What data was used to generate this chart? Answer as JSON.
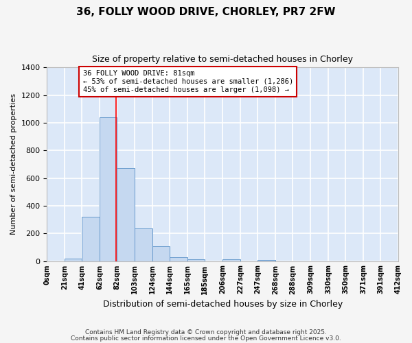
{
  "title1": "36, FOLLY WOOD DRIVE, CHORLEY, PR7 2FW",
  "title2": "Size of property relative to semi-detached houses in Chorley",
  "xlabel": "Distribution of semi-detached houses by size in Chorley",
  "ylabel": "Number of semi-detached properties",
  "bin_labels": [
    "0sqm",
    "21sqm",
    "41sqm",
    "62sqm",
    "82sqm",
    "103sqm",
    "124sqm",
    "144sqm",
    "165sqm",
    "185sqm",
    "206sqm",
    "227sqm",
    "247sqm",
    "268sqm",
    "288sqm",
    "309sqm",
    "330sqm",
    "350sqm",
    "371sqm",
    "391sqm",
    "412sqm"
  ],
  "bin_edges": [
    0,
    21,
    41,
    62,
    82,
    103,
    124,
    144,
    165,
    185,
    206,
    227,
    247,
    268,
    288,
    309,
    330,
    350,
    371,
    391,
    412
  ],
  "bar_heights": [
    0,
    20,
    320,
    1040,
    670,
    235,
    105,
    30,
    15,
    0,
    15,
    0,
    10,
    0,
    0,
    0,
    0,
    0,
    0,
    0
  ],
  "bar_color": "#c5d8f0",
  "bar_edgecolor": "#6699cc",
  "property_size": 81,
  "red_line_x": 81,
  "annotation_title": "36 FOLLY WOOD DRIVE: 81sqm",
  "annotation_line1": "← 53% of semi-detached houses are smaller (1,286)",
  "annotation_line2": "45% of semi-detached houses are larger (1,098) →",
  "annotation_box_color": "#ffffff",
  "annotation_box_edgecolor": "#cc0000",
  "ylim": [
    0,
    1400
  ],
  "background_color": "#dce8f8",
  "fig_background_color": "#f5f5f5",
  "grid_color": "#ffffff",
  "footer1": "Contains HM Land Registry data © Crown copyright and database right 2025.",
  "footer2": "Contains public sector information licensed under the Open Government Licence v3.0."
}
